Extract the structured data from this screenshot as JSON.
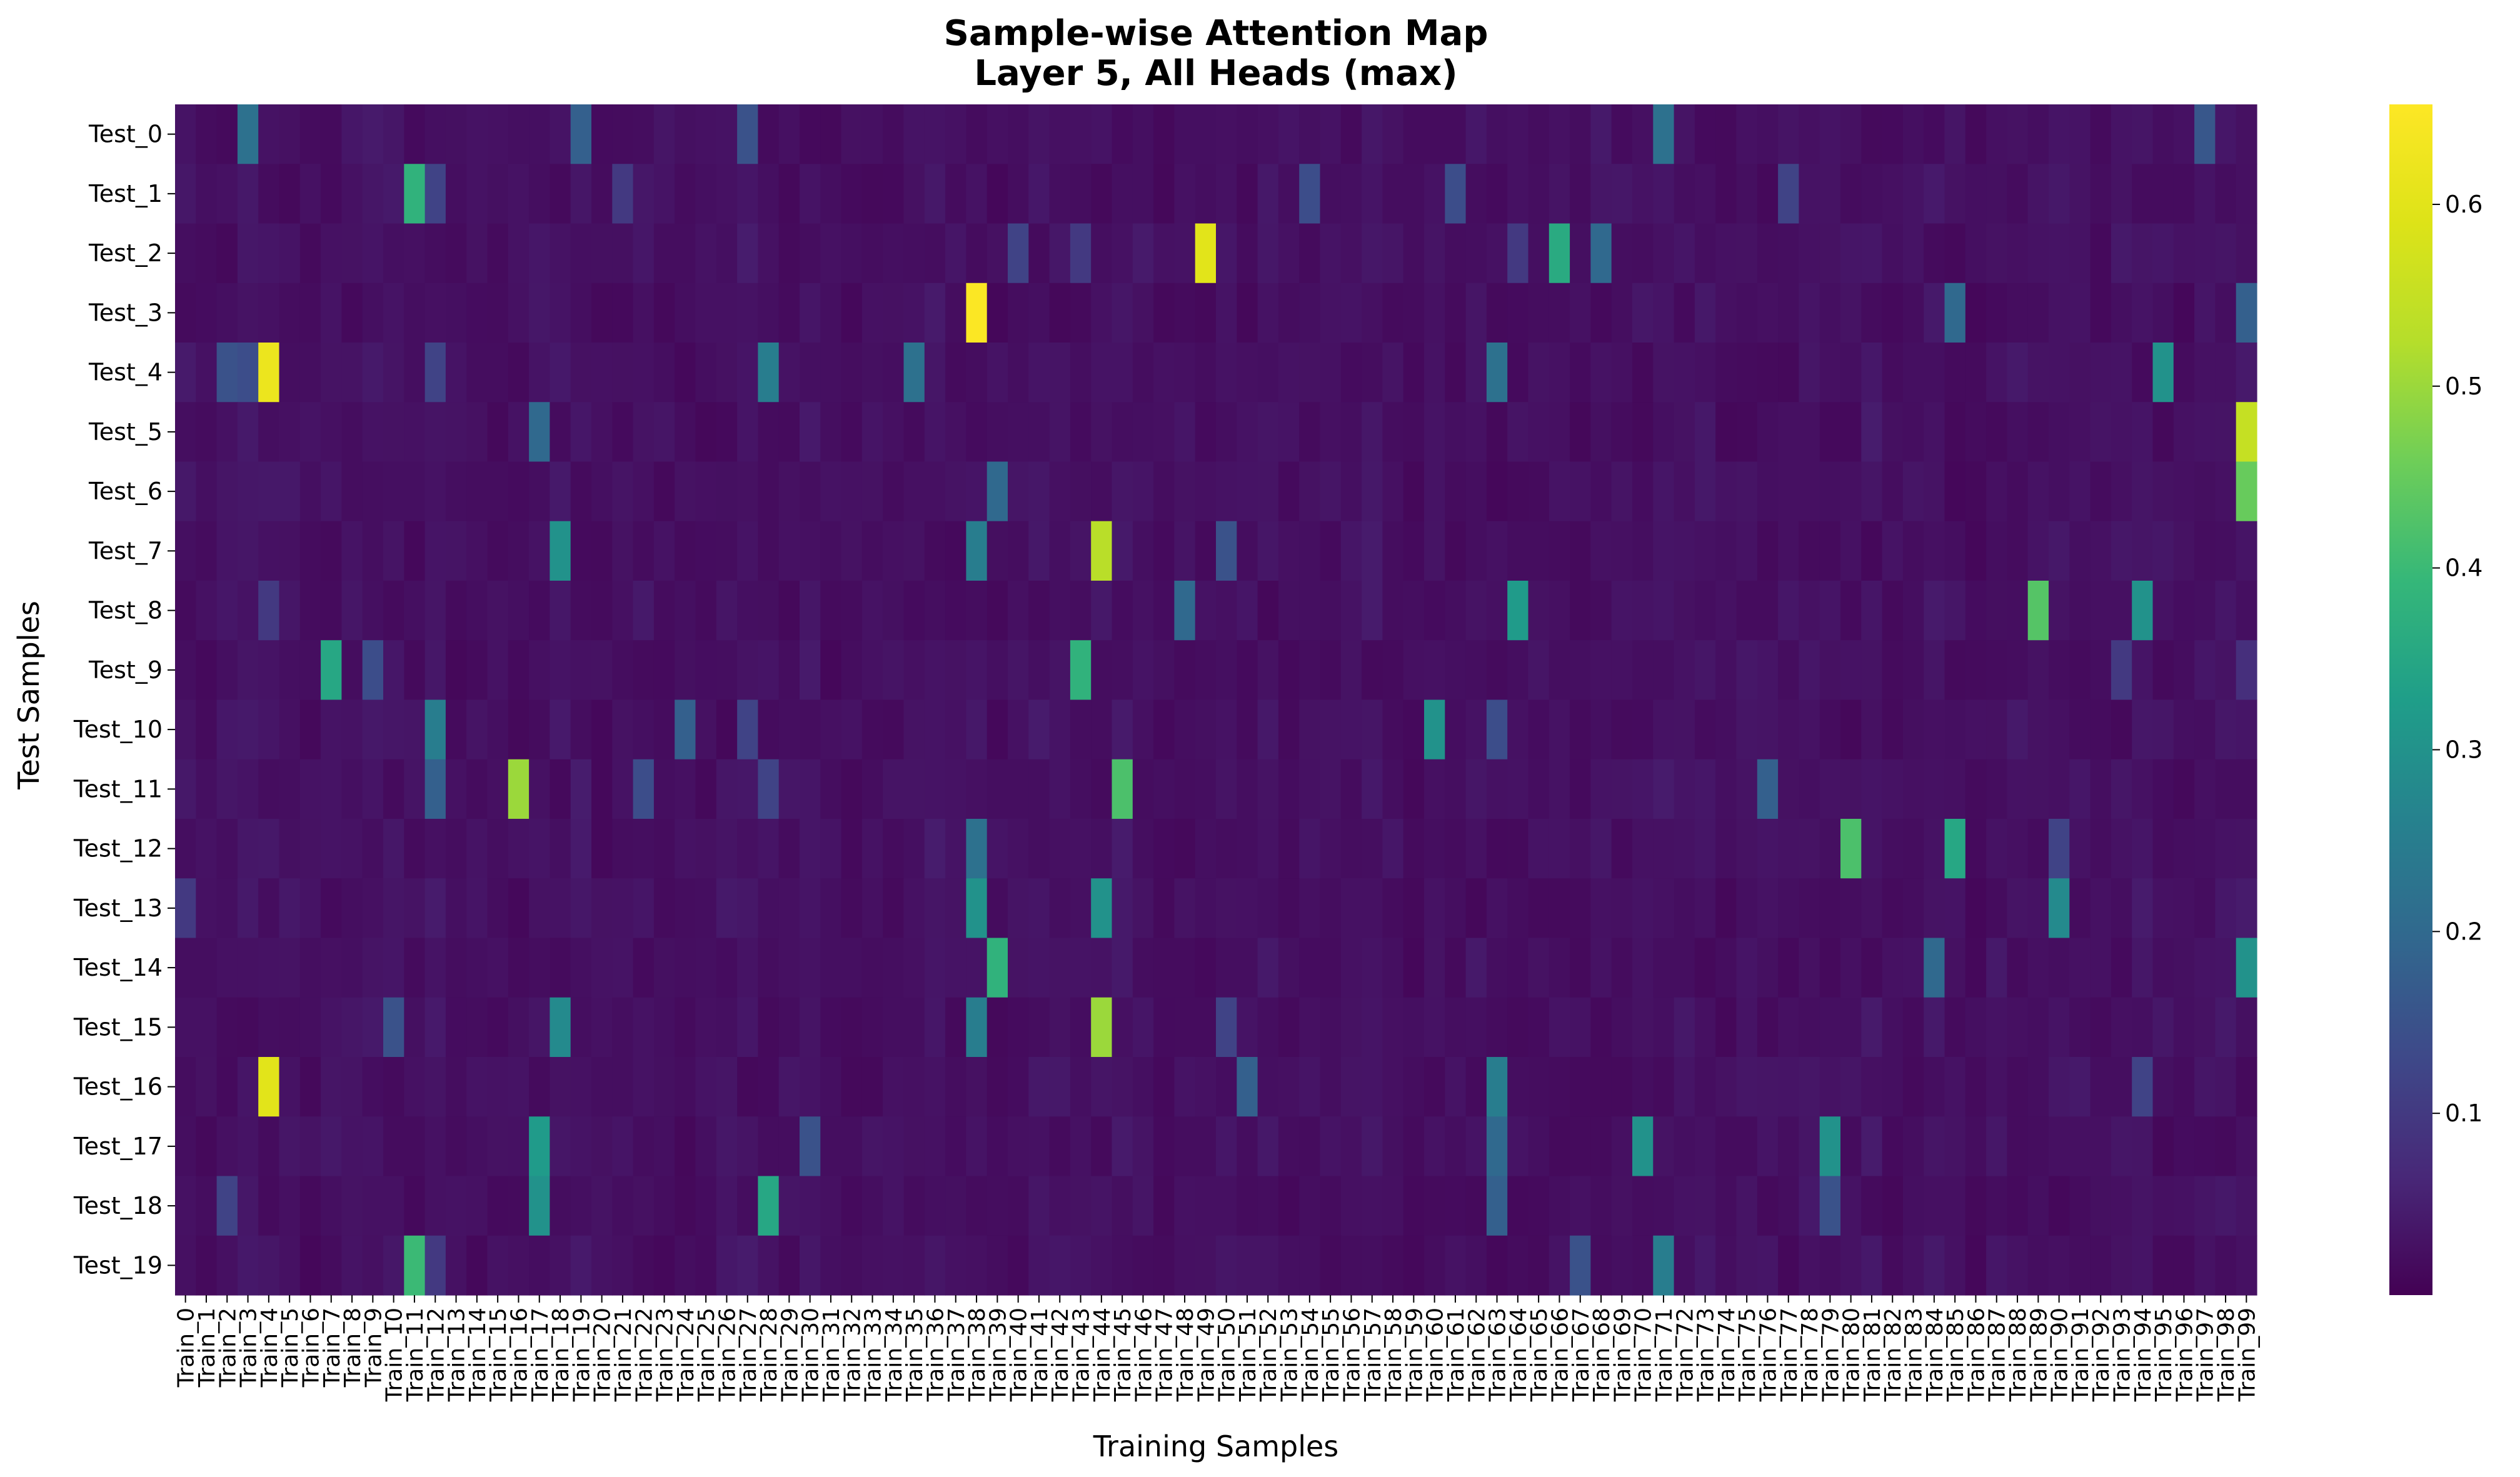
{
  "chart_data": {
    "type": "heatmap",
    "title": "Sample-wise Attention Map",
    "subtitle": "Layer 5, All Heads (max)",
    "xlabel": "Training Samples",
    "ylabel": "Test Samples",
    "rows": [
      "Test_0",
      "Test_1",
      "Test_2",
      "Test_3",
      "Test_4",
      "Test_5",
      "Test_6",
      "Test_7",
      "Test_8",
      "Test_9",
      "Test_10",
      "Test_11",
      "Test_12",
      "Test_13",
      "Test_14",
      "Test_15",
      "Test_16",
      "Test_17",
      "Test_18",
      "Test_19"
    ],
    "column_prefix": "Train_",
    "column_count": 100,
    "colormap": "viridis",
    "colorbar": {
      "min": 0.0,
      "max": 0.655,
      "ticks": [
        0.1,
        0.2,
        0.3,
        0.4,
        0.5,
        0.6
      ]
    },
    "baseline_value": 0.01,
    "background_variation": 0.04,
    "peaks": [
      [
        0,
        3,
        0.22
      ],
      [
        0,
        19,
        0.18
      ],
      [
        0,
        27,
        0.15
      ],
      [
        0,
        71,
        0.22
      ],
      [
        0,
        97,
        0.16
      ],
      [
        1,
        11,
        0.38
      ],
      [
        1,
        12,
        0.12
      ],
      [
        1,
        21,
        0.1
      ],
      [
        1,
        54,
        0.14
      ],
      [
        1,
        61,
        0.14
      ],
      [
        1,
        77,
        0.12
      ],
      [
        2,
        40,
        0.12
      ],
      [
        2,
        43,
        0.1
      ],
      [
        2,
        49,
        0.6
      ],
      [
        2,
        66,
        0.36
      ],
      [
        2,
        68,
        0.2
      ],
      [
        2,
        64,
        0.1
      ],
      [
        3,
        38,
        0.65
      ],
      [
        3,
        85,
        0.2
      ],
      [
        3,
        99,
        0.18
      ],
      [
        4,
        2,
        0.15
      ],
      [
        4,
        3,
        0.14
      ],
      [
        4,
        4,
        0.62
      ],
      [
        4,
        12,
        0.12
      ],
      [
        4,
        28,
        0.25
      ],
      [
        4,
        35,
        0.22
      ],
      [
        4,
        63,
        0.22
      ],
      [
        4,
        95,
        0.3
      ],
      [
        5,
        17,
        0.2
      ],
      [
        5,
        99,
        0.55
      ],
      [
        6,
        39,
        0.2
      ],
      [
        6,
        99,
        0.45
      ],
      [
        7,
        18,
        0.3
      ],
      [
        7,
        38,
        0.25
      ],
      [
        7,
        44,
        0.53
      ],
      [
        7,
        50,
        0.15
      ],
      [
        8,
        48,
        0.2
      ],
      [
        8,
        64,
        0.32
      ],
      [
        8,
        89,
        0.43
      ],
      [
        8,
        94,
        0.3
      ],
      [
        8,
        4,
        0.1
      ],
      [
        9,
        7,
        0.35
      ],
      [
        9,
        9,
        0.14
      ],
      [
        9,
        43,
        0.38
      ],
      [
        9,
        93,
        0.1
      ],
      [
        9,
        99,
        0.08
      ],
      [
        10,
        12,
        0.25
      ],
      [
        10,
        24,
        0.18
      ],
      [
        10,
        27,
        0.12
      ],
      [
        10,
        60,
        0.3
      ],
      [
        10,
        63,
        0.14
      ],
      [
        11,
        12,
        0.18
      ],
      [
        11,
        16,
        0.5
      ],
      [
        11,
        22,
        0.14
      ],
      [
        11,
        28,
        0.12
      ],
      [
        11,
        45,
        0.42
      ],
      [
        11,
        76,
        0.18
      ],
      [
        12,
        38,
        0.22
      ],
      [
        12,
        80,
        0.42
      ],
      [
        12,
        85,
        0.35
      ],
      [
        12,
        90,
        0.12
      ],
      [
        13,
        38,
        0.3
      ],
      [
        13,
        44,
        0.3
      ],
      [
        13,
        90,
        0.28
      ],
      [
        13,
        0,
        0.1
      ],
      [
        14,
        39,
        0.38
      ],
      [
        14,
        84,
        0.2
      ],
      [
        14,
        99,
        0.3
      ],
      [
        15,
        10,
        0.15
      ],
      [
        15,
        18,
        0.28
      ],
      [
        15,
        38,
        0.25
      ],
      [
        15,
        44,
        0.5
      ],
      [
        15,
        50,
        0.12
      ],
      [
        16,
        4,
        0.6
      ],
      [
        16,
        63,
        0.25
      ],
      [
        16,
        51,
        0.18
      ],
      [
        16,
        94,
        0.12
      ],
      [
        17,
        17,
        0.32
      ],
      [
        17,
        30,
        0.15
      ],
      [
        17,
        70,
        0.3
      ],
      [
        17,
        79,
        0.3
      ],
      [
        17,
        63,
        0.2
      ],
      [
        18,
        17,
        0.3
      ],
      [
        18,
        28,
        0.35
      ],
      [
        18,
        2,
        0.12
      ],
      [
        18,
        63,
        0.18
      ],
      [
        18,
        79,
        0.15
      ],
      [
        19,
        11,
        0.4
      ],
      [
        19,
        12,
        0.1
      ],
      [
        19,
        71,
        0.25
      ],
      [
        19,
        67,
        0.15
      ]
    ]
  }
}
